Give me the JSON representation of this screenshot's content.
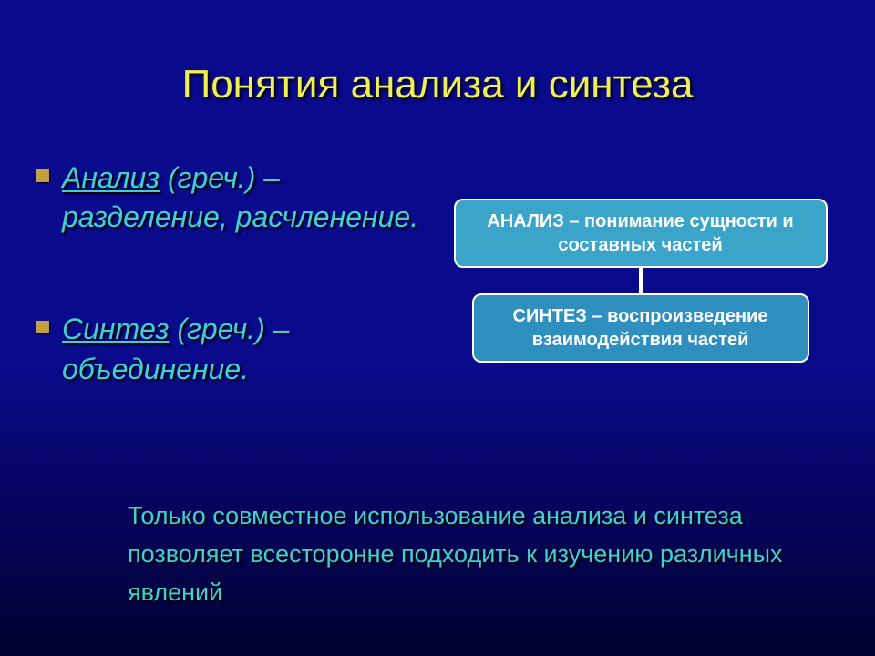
{
  "title": "Понятия анализа и синтеза",
  "bullets": [
    {
      "term": "Анализ",
      "rest": " (греч.) – разделение, расчленение."
    },
    {
      "term": "Синтез",
      "rest": " (греч.) – объединение."
    }
  ],
  "diagram": {
    "top_box": "АНАЛИЗ – понимание сущности и составных частей",
    "bottom_box": "СИНТЕЗ – воспроизведение взаимодействия частей",
    "top_color": "#3ba5c9",
    "bottom_color": "#2f8fbf",
    "border_color": "#ffffff",
    "connector_color": "#ffffff"
  },
  "footer": "Только совместное использование анализа и синтеза позволяет всесторонне подходить к изучению различных явлений",
  "colors": {
    "title_color": "#f0f050",
    "body_color": "#40d0d0",
    "bullet_color": "#c0a040",
    "bg_top": "#0a0a8c",
    "bg_bottom": "#000030"
  },
  "fonts": {
    "title_size_pt": 33,
    "body_size_pt": 24,
    "box_size_pt": 15,
    "footer_size_pt": 20
  }
}
